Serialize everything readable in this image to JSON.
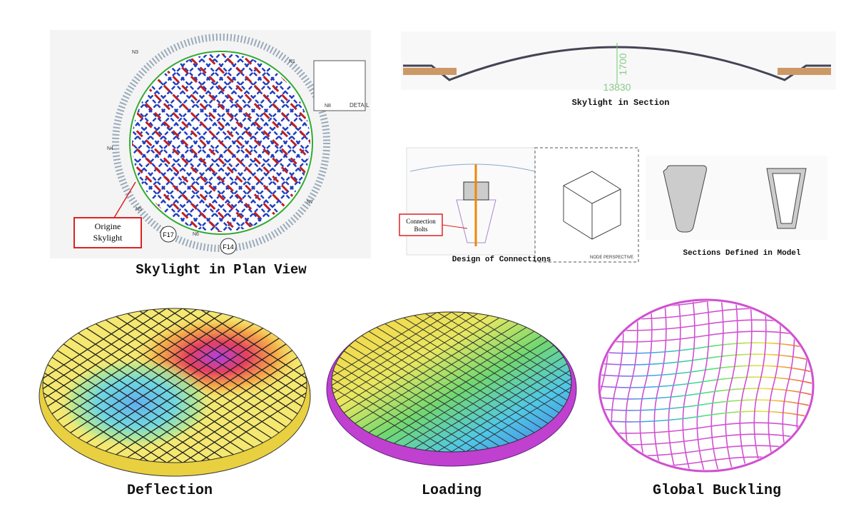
{
  "panels": {
    "plan": {
      "caption": "Skylight in Plan View",
      "callout": [
        "Origine",
        "Skylight"
      ],
      "nodes": [
        "N3",
        "N1",
        "N8",
        "N4",
        "N5",
        "N7",
        "N6"
      ],
      "markers": [
        "F17",
        "F14"
      ],
      "detail": "DETAIL"
    },
    "section": {
      "caption": "Skylight in Section",
      "height": "1700",
      "span": "13830"
    },
    "connections": {
      "caption": "Design of Connections",
      "callout": [
        "Connection",
        "Bolts"
      ],
      "node": "NODE PERSPECTIVE"
    },
    "model_sections": {
      "caption": "Sections Defined in Model"
    },
    "results": [
      {
        "caption": "Deflection"
      },
      {
        "caption": "Loading"
      },
      {
        "caption": "Global Buckling"
      }
    ]
  }
}
